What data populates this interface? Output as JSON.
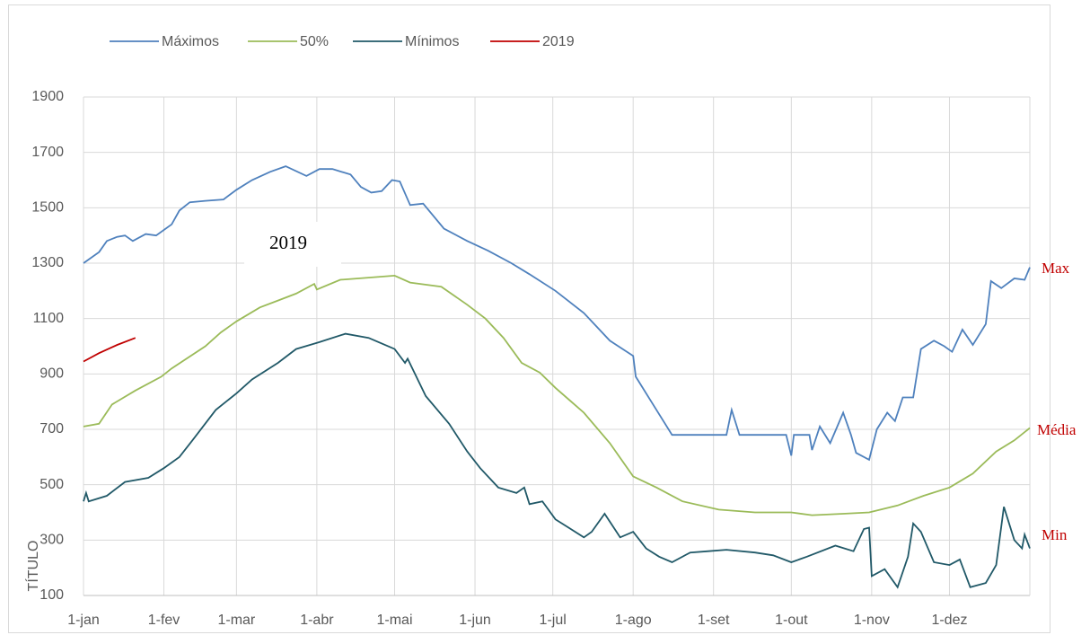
{
  "chart_data": {
    "type": "line",
    "y_label": "TÍTULO",
    "annotations": [
      "2019",
      "Max",
      "Média",
      "Min"
    ],
    "xlim": [
      0,
      365
    ],
    "xticks": [
      {
        "value": 0,
        "label": "1-jan"
      },
      {
        "value": 31,
        "label": "1-fev"
      },
      {
        "value": 59,
        "label": "1-mar"
      },
      {
        "value": 90,
        "label": "1-abr"
      },
      {
        "value": 120,
        "label": "1-mai"
      },
      {
        "value": 151,
        "label": "1-jun"
      },
      {
        "value": 181,
        "label": "1-jul"
      },
      {
        "value": 212,
        "label": "1-ago"
      },
      {
        "value": 243,
        "label": "1-set"
      },
      {
        "value": 273,
        "label": "1-out"
      },
      {
        "value": 304,
        "label": "1-nov"
      },
      {
        "value": 334,
        "label": "1-dez"
      }
    ],
    "ylim": [
      100,
      1900
    ],
    "yticks": [
      100,
      300,
      500,
      700,
      900,
      1100,
      1300,
      1500,
      1700,
      1900
    ],
    "grid": true,
    "legend": "top",
    "series": [
      {
        "name": "Máximos",
        "color": "#4f81bd",
        "x": [
          0,
          6,
          9,
          13,
          16,
          19,
          24,
          28,
          34,
          37,
          41,
          47,
          54,
          59,
          65,
          72,
          78,
          86,
          91,
          96,
          103,
          107,
          111,
          115,
          119,
          122,
          126,
          131,
          139,
          148,
          156,
          165,
          172,
          182,
          193,
          203,
          212,
          213,
          219,
          227,
          248,
          250,
          253,
          271,
          273,
          274,
          280,
          281,
          284,
          288,
          293,
          296,
          298,
          303,
          306,
          310,
          313,
          316,
          320,
          323,
          328,
          332,
          335,
          339,
          343,
          348,
          350,
          354,
          359,
          363,
          365
        ],
        "values": [
          1300,
          1340,
          1380,
          1395,
          1400,
          1380,
          1405,
          1400,
          1440,
          1490,
          1520,
          1525,
          1530,
          1565,
          1600,
          1630,
          1650,
          1615,
          1640,
          1640,
          1620,
          1575,
          1555,
          1560,
          1600,
          1595,
          1510,
          1515,
          1425,
          1380,
          1345,
          1300,
          1260,
          1200,
          1120,
          1020,
          965,
          890,
          800,
          680,
          680,
          770,
          680,
          680,
          605,
          680,
          680,
          625,
          710,
          650,
          760,
          680,
          615,
          590,
          700,
          760,
          730,
          815,
          815,
          990,
          1020,
          1000,
          980,
          1060,
          1005,
          1080,
          1235,
          1210,
          1245,
          1240,
          1285
        ]
      },
      {
        "name": "50%",
        "color": "#9bbb59",
        "x": [
          0,
          6,
          11,
          20,
          30,
          34,
          47,
          53,
          59,
          68,
          75,
          82,
          89,
          90,
          99,
          106,
          120,
          126,
          138,
          148,
          155,
          162,
          169,
          176,
          182,
          193,
          203,
          212,
          221,
          231,
          245,
          259,
          273,
          281,
          293,
          303,
          314,
          324,
          334,
          343,
          352,
          359,
          365
        ],
        "values": [
          710,
          720,
          790,
          840,
          890,
          920,
          1000,
          1050,
          1090,
          1140,
          1165,
          1190,
          1225,
          1205,
          1240,
          1245,
          1255,
          1230,
          1215,
          1150,
          1100,
          1030,
          940,
          905,
          850,
          760,
          650,
          530,
          490,
          440,
          410,
          400,
          400,
          390,
          395,
          400,
          425,
          460,
          490,
          540,
          620,
          660,
          705
        ]
      },
      {
        "name": "Mínimos",
        "color": "#215968",
        "x": [
          0,
          1,
          2,
          9,
          16,
          25,
          31,
          37,
          42,
          51,
          59,
          65,
          75,
          82,
          91,
          101,
          110,
          120,
          124,
          125,
          132,
          141,
          148,
          153,
          160,
          167,
          170,
          172,
          177,
          182,
          193,
          196,
          201,
          207,
          212,
          217,
          222,
          227,
          234,
          241,
          248,
          259,
          266,
          273,
          279,
          290,
          297,
          301,
          303,
          304,
          309,
          314,
          318,
          320,
          323,
          328,
          334,
          338,
          342,
          348,
          352,
          355,
          359,
          362,
          363,
          365
        ],
        "values": [
          440,
          470,
          440,
          460,
          510,
          525,
          560,
          600,
          660,
          770,
          830,
          880,
          940,
          990,
          1015,
          1045,
          1030,
          990,
          940,
          955,
          820,
          720,
          620,
          560,
          490,
          470,
          490,
          430,
          440,
          375,
          310,
          330,
          395,
          310,
          330,
          270,
          240,
          220,
          255,
          260,
          265,
          255,
          245,
          220,
          240,
          280,
          260,
          340,
          345,
          170,
          195,
          130,
          240,
          360,
          330,
          220,
          210,
          230,
          130,
          145,
          210,
          420,
          300,
          270,
          320,
          270
        ]
      },
      {
        "name": "2019",
        "color": "#c00000",
        "x": [
          0,
          6,
          13,
          20
        ],
        "values": [
          945,
          975,
          1005,
          1030
        ]
      }
    ]
  }
}
